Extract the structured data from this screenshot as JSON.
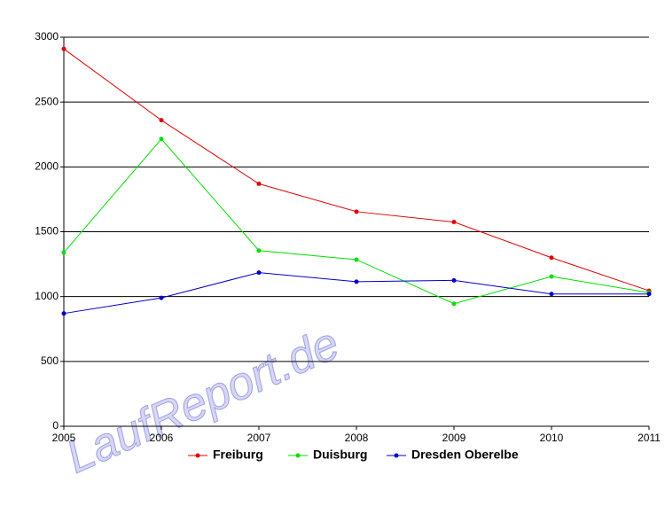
{
  "chart_data": {
    "type": "line",
    "x": [
      2005,
      2006,
      2007,
      2008,
      2009,
      2010,
      2011
    ],
    "xlim": [
      2005,
      2011
    ],
    "xticks": [
      2005,
      2006,
      2007,
      2008,
      2009,
      2010,
      2011
    ],
    "ylim": [
      0,
      3000
    ],
    "yticks": [
      0,
      500,
      1000,
      1500,
      2000,
      2500,
      3000
    ],
    "grid": true,
    "legend": "bottom",
    "watermark": "LaufReport.de",
    "series": [
      {
        "name": "Freiburg",
        "color": "#e00000",
        "values": [
          2910,
          2360,
          1870,
          1655,
          1575,
          1300,
          1045
        ]
      },
      {
        "name": "Duisburg",
        "color": "#00e000",
        "values": [
          1340,
          2215,
          1355,
          1285,
          945,
          1155,
          1030
        ]
      },
      {
        "name": "Dresden Oberelbe",
        "color": "#0000c8",
        "values": [
          870,
          990,
          1185,
          1115,
          1125,
          1020,
          1020
        ]
      }
    ]
  }
}
